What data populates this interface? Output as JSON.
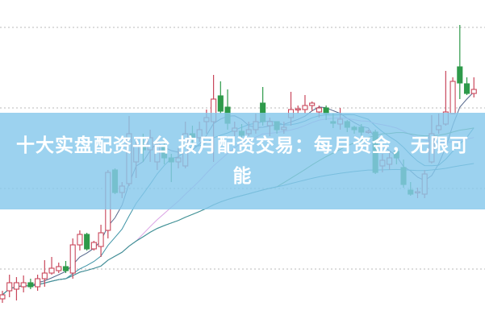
{
  "banner": {
    "title": "十大实盘配资平台 按月配资交易：每月资金，无限可能",
    "color": "#86c8ec"
  },
  "chart_data": {
    "type": "candlestick",
    "title": "",
    "xlabel": "",
    "ylabel": "",
    "ylim": [
      3.3,
      43.4
    ],
    "grid": true,
    "grid_style": "dotted",
    "grid_values": [
      10,
      20,
      30,
      40
    ],
    "colors": {
      "up": "#c9475b",
      "down": "#2e9a4a",
      "grid": "#b8b8b8"
    },
    "moving_averages": [
      {
        "period": 5,
        "color": "#56688c"
      },
      {
        "period": 10,
        "color": "#3d93a6"
      },
      {
        "period": 20,
        "color": "#dba2e4"
      },
      {
        "period": 40,
        "color": "#4a9a52"
      },
      {
        "period": 68,
        "color": "#3f8fa0"
      }
    ],
    "candles": [
      [
        6.3,
        6.8,
        7.3,
        5.8
      ],
      [
        7.3,
        8.3,
        9.3,
        6.5
      ],
      [
        7.5,
        8.3,
        9.0,
        6.1
      ],
      [
        7.8,
        8.3,
        9.2,
        7.1
      ],
      [
        8.3,
        7.8,
        8.8,
        7.5
      ],
      [
        7.8,
        8.8,
        9.3,
        7.3
      ],
      [
        8.8,
        9.5,
        11.1,
        7.8
      ],
      [
        9.5,
        10.1,
        11.5,
        9.3
      ],
      [
        9.8,
        10.3,
        10.8,
        9.5
      ],
      [
        10.3,
        9.8,
        11.0,
        9.5
      ],
      [
        9.5,
        13.0,
        13.8,
        8.8
      ],
      [
        13.0,
        14.3,
        14.8,
        12.3
      ],
      [
        14.3,
        12.5,
        14.5,
        12.3
      ],
      [
        12.5,
        13.3,
        13.5,
        12.3
      ],
      [
        12.8,
        14.5,
        15.5,
        11.5
      ],
      [
        14.8,
        22.0,
        22.3,
        13.8
      ],
      [
        22.3,
        19.5,
        22.5,
        19.3
      ],
      [
        19.5,
        20.3,
        20.8,
        18.8
      ],
      [
        20.6,
        26.8,
        29.0,
        20.3
      ],
      [
        23.3,
        25.3,
        26.3,
        21.3
      ],
      [
        25.3,
        24.8,
        26.8,
        23.3
      ],
      [
        24.8,
        26.3,
        27.3,
        23.3
      ],
      [
        23.3,
        25.3,
        26.0,
        22.3
      ],
      [
        25.3,
        23.8,
        26.0,
        23.0
      ],
      [
        23.8,
        23.3,
        24.3,
        20.8
      ],
      [
        23.3,
        23.8,
        25.0,
        22.5
      ],
      [
        22.8,
        26.8,
        28.3,
        22.5
      ],
      [
        26.8,
        26.3,
        27.8,
        25.3
      ],
      [
        26.3,
        27.3,
        28.3,
        25.8
      ],
      [
        28.3,
        28.8,
        29.8,
        26.8
      ],
      [
        28.3,
        31.1,
        34.1,
        23.3
      ],
      [
        31.5,
        29.6,
        33.3,
        29.3
      ],
      [
        30.1,
        28.1,
        32.3,
        27.3
      ],
      [
        27.1,
        27.5,
        28.3,
        26.5
      ],
      [
        27.1,
        26.6,
        28.0,
        26.0
      ],
      [
        26.8,
        27.3,
        28.3,
        26.5
      ],
      [
        27.3,
        28.3,
        29.3,
        26.8
      ],
      [
        30.6,
        28.3,
        32.6,
        27.8
      ],
      [
        27.8,
        28.3,
        28.8,
        26.5
      ],
      [
        28.3,
        27.3,
        28.3,
        26.8
      ],
      [
        27.3,
        27.6,
        28.3,
        26.8
      ],
      [
        28.8,
        29.8,
        32.0,
        27.8
      ],
      [
        29.8,
        29.9,
        30.3,
        29.3
      ],
      [
        29.8,
        30.3,
        31.6,
        29.3
      ],
      [
        30.3,
        30.6,
        30.8,
        29.6
      ],
      [
        29.5,
        30.0,
        30.3,
        28.8
      ],
      [
        30.0,
        29.3,
        30.3,
        28.5
      ],
      [
        28.3,
        28.1,
        29.3,
        27.5
      ],
      [
        28.0,
        28.6,
        30.0,
        27.3
      ],
      [
        28.3,
        27.6,
        28.5,
        27.0
      ],
      [
        27.6,
        27.3,
        27.8,
        26.8
      ],
      [
        27.6,
        27.0,
        28.0,
        26.5
      ],
      [
        27.0,
        27.1,
        27.3,
        26.8
      ],
      [
        27.0,
        22.0,
        27.3,
        21.8
      ],
      [
        22.8,
        23.5,
        24.3,
        22.0
      ],
      [
        23.0,
        23.8,
        24.6,
        22.3
      ],
      [
        24.6,
        23.8,
        25.0,
        23.0
      ],
      [
        22.6,
        20.5,
        23.6,
        20.1
      ],
      [
        19.8,
        19.3,
        20.8,
        19.1
      ],
      [
        19.5,
        19.6,
        20.1,
        18.8
      ],
      [
        19.3,
        21.8,
        22.3,
        18.8
      ],
      [
        23.3,
        26.8,
        29.1,
        23.1
      ],
      [
        27.3,
        27.8,
        29.3,
        26.8
      ],
      [
        28.0,
        29.5,
        34.6,
        27.8
      ],
      [
        29.3,
        33.3,
        33.8,
        29.3
      ],
      [
        35.1,
        33.1,
        40.3,
        31.1
      ],
      [
        33.0,
        31.8,
        33.8,
        31.6
      ],
      [
        31.8,
        32.3,
        33.8,
        31.3
      ]
    ]
  }
}
